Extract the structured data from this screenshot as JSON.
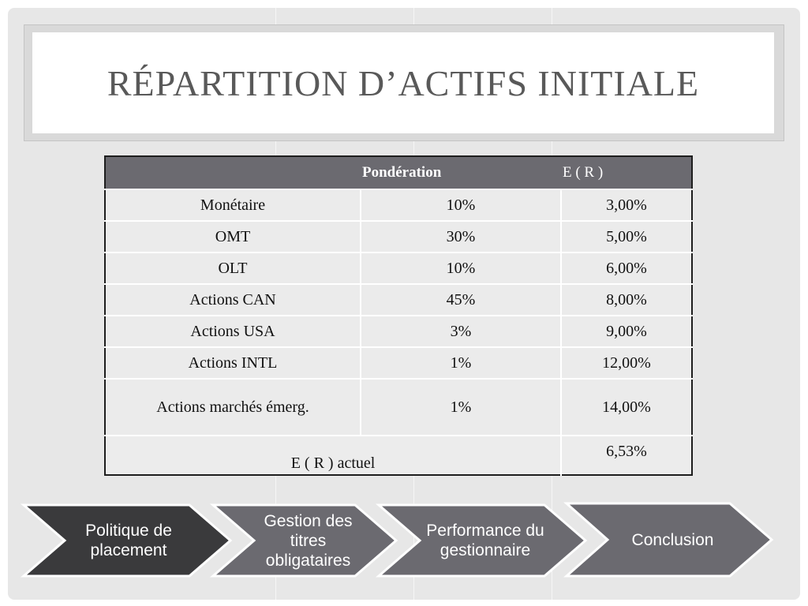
{
  "title": "RÉPARTITION D’ACTIFS INITIALE",
  "table": {
    "headers": [
      "",
      "Pondération",
      "E ( R )"
    ],
    "rows": [
      {
        "label": "Monétaire",
        "weight": "10%",
        "er": "3,00%"
      },
      {
        "label": "OMT",
        "weight": "30%",
        "er": "5,00%"
      },
      {
        "label": "OLT",
        "weight": "10%",
        "er": "6,00%"
      },
      {
        "label": "Actions CAN",
        "weight": "45%",
        "er": "8,00%"
      },
      {
        "label": "Actions USA",
        "weight": "3%",
        "er": "9,00%"
      },
      {
        "label": "Actions INTL",
        "weight": "1%",
        "er": "12,00%"
      },
      {
        "label": "Actions marchés émerg.",
        "weight": "1%",
        "er": "14,00%"
      }
    ],
    "total": {
      "label": "E ( R ) actuel",
      "value": "6,53%"
    }
  },
  "nav": {
    "steps": [
      {
        "label": "Politique de placement",
        "active": true
      },
      {
        "label": "Gestion des titres obligataires",
        "active": false
      },
      {
        "label": "Performance du gestionnaire",
        "active": false
      },
      {
        "label": "Conclusion",
        "active": false
      }
    ],
    "colors": {
      "active": "#3a3a3c",
      "inactive": "#6b6a70",
      "border": "#ffffff"
    }
  }
}
